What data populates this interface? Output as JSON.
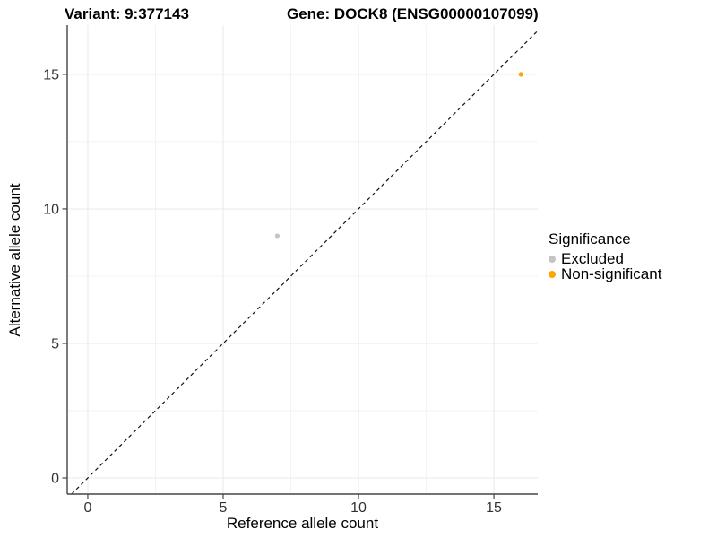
{
  "titles": {
    "variant": "Variant: 9:377143",
    "gene": "Gene: DOCK8 (ENSG00000107099)"
  },
  "chart_data": {
    "type": "scatter",
    "xlabel": "Reference allele count",
    "ylabel": "Alternative allele count",
    "xlim": [
      -0.76,
      16.62
    ],
    "ylim": [
      -0.6,
      16.83
    ],
    "x_ticks": [
      0,
      5,
      10,
      15
    ],
    "y_ticks": [
      0,
      5,
      10,
      15
    ],
    "x_minor_ticks": [
      2.5,
      7.5,
      12.5
    ],
    "y_minor_ticks": [
      2.5,
      7.5,
      12.5
    ],
    "grid": true,
    "reference_line": {
      "type": "identity",
      "slope": 1,
      "intercept": 0,
      "style": "dashed",
      "color": "#111111"
    },
    "series": [
      {
        "name": "Excluded",
        "color": "#c4c4c4",
        "points": [
          {
            "x": 7,
            "y": 9
          }
        ]
      },
      {
        "name": "Non-significant",
        "color": "#ffa500",
        "points": [
          {
            "x": 16,
            "y": 15
          }
        ]
      }
    ],
    "legend": {
      "title": "Significance",
      "position": "right"
    }
  },
  "style_colors": {
    "axis_line": "#454545",
    "tick_text": "#333333",
    "major_grid": "#e9e9e9",
    "minor_grid": "#f3f3f3",
    "background": "#ffffff"
  }
}
